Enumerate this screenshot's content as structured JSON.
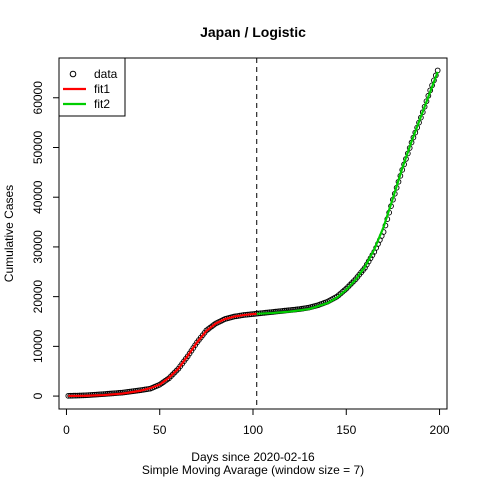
{
  "chart_data": {
    "type": "scatter",
    "title": "Japan / Logistic",
    "xlabel": "Days since 2020-02-16",
    "subtitle": "Simple Moving Avarage (window size = 7)",
    "ylabel": "Cumulative Cases",
    "xlim": [
      -4,
      204
    ],
    "ylim": [
      -2600,
      68000
    ],
    "xticks": [
      0,
      50,
      100,
      150,
      200
    ],
    "yticks": [
      0,
      10000,
      20000,
      30000,
      40000,
      50000,
      60000
    ],
    "vline_x": 102,
    "legend": {
      "position": "top-left",
      "entries": [
        {
          "label": "data",
          "kind": "point",
          "color": "#000000"
        },
        {
          "label": "fit1",
          "kind": "line",
          "color": "#ff0000"
        },
        {
          "label": "fit2",
          "kind": "line",
          "color": "#00cd00"
        }
      ]
    },
    "data_x_range": [
      1,
      199
    ],
    "data_points": [
      [
        1,
        50
      ],
      [
        10,
        150
      ],
      [
        20,
        400
      ],
      [
        30,
        700
      ],
      [
        40,
        1200
      ],
      [
        45,
        1500
      ],
      [
        50,
        2300
      ],
      [
        55,
        3600
      ],
      [
        60,
        5500
      ],
      [
        65,
        8000
      ],
      [
        70,
        10800
      ],
      [
        75,
        13200
      ],
      [
        80,
        14600
      ],
      [
        85,
        15500
      ],
      [
        90,
        16000
      ],
      [
        95,
        16300
      ],
      [
        100,
        16500
      ],
      [
        105,
        16700
      ],
      [
        110,
        16900
      ],
      [
        115,
        17100
      ],
      [
        120,
        17300
      ],
      [
        125,
        17500
      ],
      [
        130,
        17800
      ],
      [
        135,
        18300
      ],
      [
        140,
        19000
      ],
      [
        145,
        20000
      ],
      [
        150,
        21600
      ],
      [
        155,
        23500
      ],
      [
        160,
        25800
      ],
      [
        165,
        29000
      ],
      [
        170,
        33000
      ],
      [
        175,
        39500
      ],
      [
        180,
        45500
      ],
      [
        185,
        51000
      ],
      [
        190,
        56000
      ],
      [
        195,
        61500
      ],
      [
        199,
        65500
      ]
    ],
    "series": [
      {
        "name": "fit1",
        "color": "#ff0000",
        "x": [
          1,
          10,
          20,
          30,
          40,
          45,
          50,
          55,
          60,
          65,
          70,
          75,
          80,
          85,
          90,
          95,
          100,
          102
        ],
        "y": [
          30,
          70,
          200,
          500,
          1100,
          1600,
          2300,
          3700,
          5500,
          8100,
          10800,
          13100,
          14600,
          15500,
          16000,
          16300,
          16500,
          16550
        ]
      },
      {
        "name": "fit2",
        "color": "#00cd00",
        "x": [
          102,
          110,
          120,
          130,
          140,
          145,
          150,
          155,
          160,
          165,
          170,
          175,
          180,
          185,
          190,
          195,
          199
        ],
        "y": [
          16550,
          16700,
          17000,
          17500,
          18700,
          19800,
          21400,
          23400,
          26000,
          29500,
          34000,
          39800,
          45800,
          51200,
          56200,
          61200,
          65200
        ]
      }
    ]
  }
}
